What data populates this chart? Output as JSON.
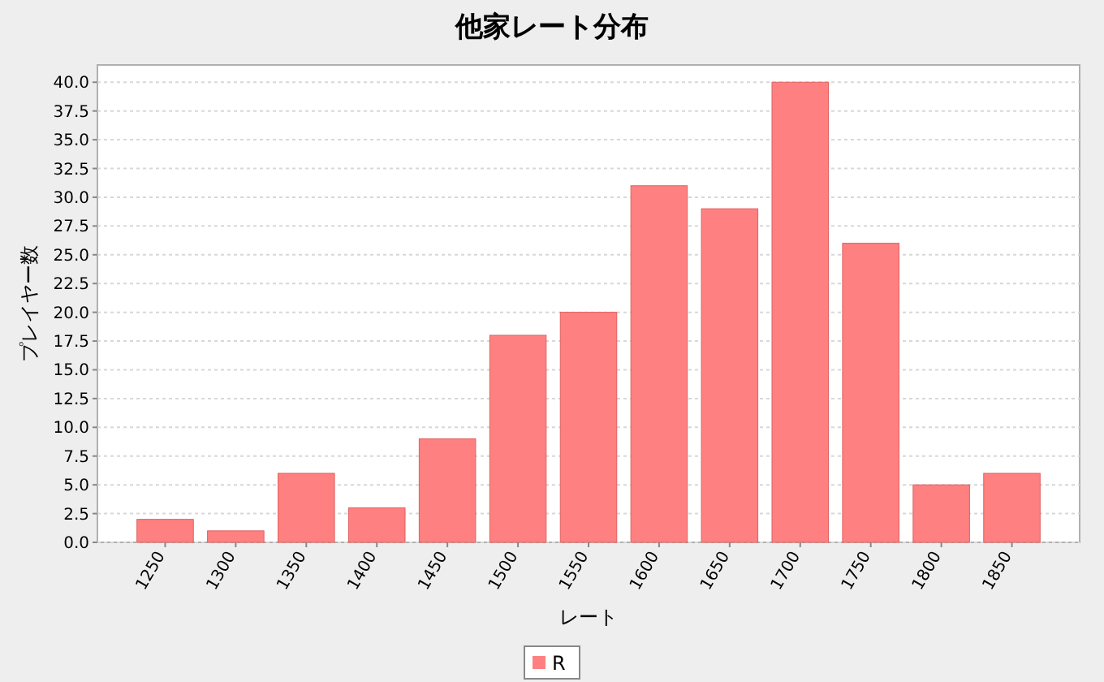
{
  "chart_data": {
    "type": "bar",
    "title": "他家レート分布",
    "xlabel": "レート",
    "ylabel": "プレイヤー数",
    "categories": [
      "1250",
      "1300",
      "1350",
      "1400",
      "1450",
      "1500",
      "1550",
      "1600",
      "1650",
      "1700",
      "1750",
      "1800",
      "1850"
    ],
    "series": [
      {
        "name": "R",
        "color": "#ff8080",
        "values": [
          2,
          1,
          6,
          3,
          9,
          18,
          20,
          31,
          29,
          40,
          26,
          5,
          6
        ]
      }
    ],
    "ylim": [
      0,
      41.5
    ],
    "yticks": [
      {
        "value": 0,
        "label": "0.0"
      },
      {
        "value": 2.5,
        "label": "2.5"
      },
      {
        "value": 5,
        "label": "5.0"
      },
      {
        "value": 7.5,
        "label": "7.5"
      },
      {
        "value": 10,
        "label": "10.0"
      },
      {
        "value": 12.5,
        "label": "12.5"
      },
      {
        "value": 15,
        "label": "15.0"
      },
      {
        "value": 17.5,
        "label": "17.5"
      },
      {
        "value": 20,
        "label": "20.0"
      },
      {
        "value": 22.5,
        "label": "22.5"
      },
      {
        "value": 25,
        "label": "25.0"
      },
      {
        "value": 27.5,
        "label": "27.5"
      },
      {
        "value": 30,
        "label": "30.0"
      },
      {
        "value": 32.5,
        "label": "32.5"
      },
      {
        "value": 35,
        "label": "35.0"
      },
      {
        "value": 37.5,
        "label": "37.5"
      },
      {
        "value": 40,
        "label": "40.0"
      }
    ],
    "grid": "y",
    "legend": "bottom"
  }
}
